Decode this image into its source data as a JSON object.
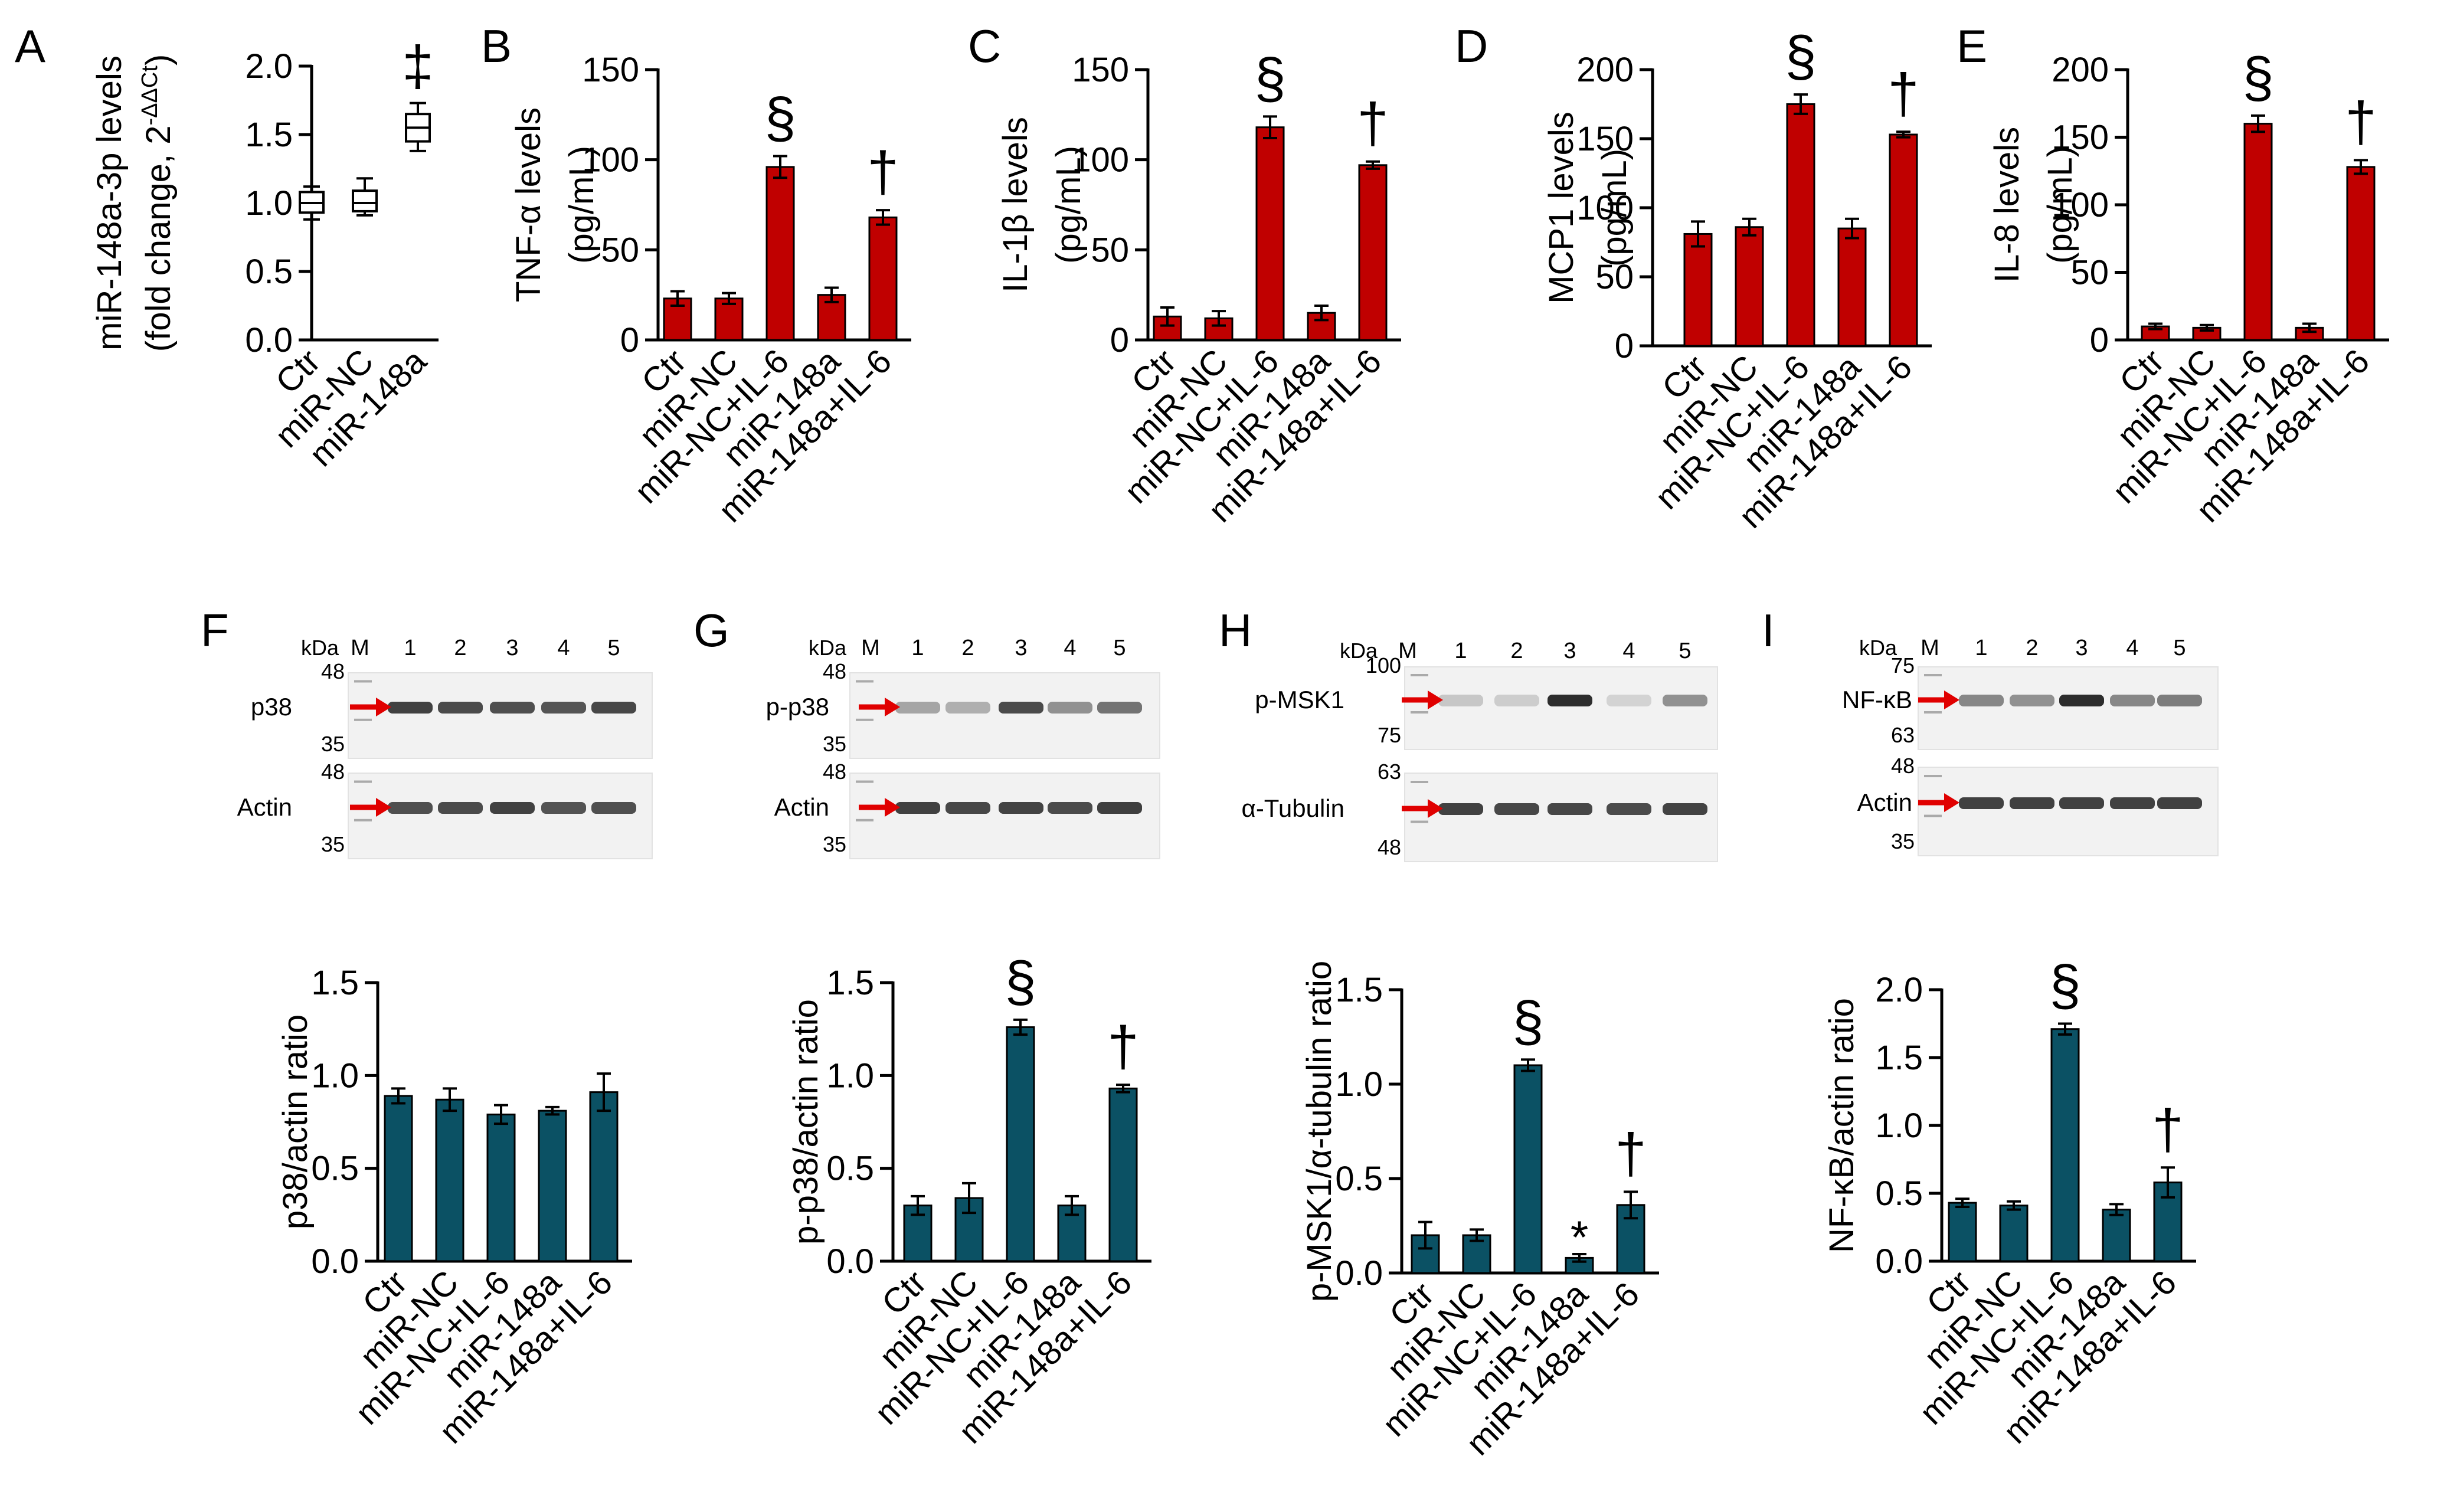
{
  "chart_data": [
    {
      "panel": "A",
      "type": "box",
      "title": "",
      "ylabel": "miR-148a-3p levels",
      "ylabel2_prefix": "(fold change, 2",
      "ylabel2_sup": "-ΔΔCt",
      "ylabel2_suffix": ")",
      "ylim": [
        0,
        2.0
      ],
      "yticks": [
        "0.0",
        "0.5",
        "1.0",
        "1.5",
        "2.0"
      ],
      "ytick_values": [
        0,
        0.5,
        1.0,
        1.5,
        2.0
      ],
      "categories": [
        "Ctr",
        "miR-NC",
        "miR-148a"
      ],
      "boxes": [
        {
          "min": 0.88,
          "q1": 0.93,
          "median": 1.0,
          "q3": 1.08,
          "max": 1.12
        },
        {
          "min": 0.91,
          "q1": 0.94,
          "median": 1.0,
          "q3": 1.09,
          "max": 1.18
        },
        {
          "min": 1.38,
          "q1": 1.45,
          "median": 1.55,
          "q3": 1.65,
          "max": 1.73
        }
      ],
      "annotations": [
        "",
        "",
        "‡"
      ]
    },
    {
      "panel": "B",
      "type": "bar",
      "color": "#c00000",
      "ylabel": "TNF-α levels",
      "ylabel2": "(pg/mL)",
      "ylim": [
        0,
        150
      ],
      "yticks": [
        "0",
        "50",
        "100",
        "150"
      ],
      "ytick_values": [
        0,
        50,
        100,
        150
      ],
      "categories": [
        "Ctr",
        "miR-NC",
        "miR-NC+IL-6",
        "miR-148a",
        "miR-148a+IL-6"
      ],
      "values": [
        23,
        23,
        96,
        25,
        68
      ],
      "errors": [
        4,
        3,
        6,
        4,
        4
      ],
      "annotations": [
        "",
        "",
        "§",
        "",
        "†"
      ]
    },
    {
      "panel": "C",
      "type": "bar",
      "color": "#c00000",
      "ylabel": "IL-1β levels",
      "ylabel2": "(pg/mL)",
      "ylim": [
        0,
        150
      ],
      "yticks": [
        "0",
        "50",
        "100",
        "150"
      ],
      "ytick_values": [
        0,
        50,
        100,
        150
      ],
      "categories": [
        "Ctr",
        "miR-NC",
        "miR-NC+IL-6",
        "miR-148a",
        "miR-148a+IL-6"
      ],
      "values": [
        13,
        12,
        118,
        15,
        97
      ],
      "errors": [
        5,
        4,
        6,
        4,
        2
      ],
      "annotations": [
        "",
        "",
        "§",
        "",
        "†"
      ]
    },
    {
      "panel": "D",
      "type": "bar",
      "color": "#c00000",
      "ylabel": "MCP1 levels",
      "ylabel2": "(pg/mL)",
      "ylim": [
        0,
        200
      ],
      "yticks": [
        "0",
        "50",
        "100",
        "150",
        "200"
      ],
      "ytick_values": [
        0,
        50,
        100,
        150,
        200
      ],
      "categories": [
        "Ctr",
        "miR-NC",
        "miR-NC+IL-6",
        "miR-148a",
        "miR-148a+IL-6"
      ],
      "values": [
        81,
        86,
        175,
        85,
        153
      ],
      "errors": [
        9,
        6,
        7,
        7,
        2
      ],
      "annotations": [
        "",
        "",
        "§",
        "",
        "†"
      ]
    },
    {
      "panel": "E",
      "type": "bar",
      "color": "#c00000",
      "ylabel": "IL-8 levels",
      "ylabel2": "(pg/mL)",
      "ylim": [
        0,
        200
      ],
      "yticks": [
        "0",
        "50",
        "100",
        "150",
        "200"
      ],
      "ytick_values": [
        0,
        50,
        100,
        150,
        200
      ],
      "categories": [
        "Ctr",
        "miR-NC",
        "miR-NC+IL-6",
        "miR-148a",
        "miR-148a+IL-6"
      ],
      "values": [
        10,
        9,
        160,
        9,
        128
      ],
      "errors": [
        2,
        2,
        6,
        3,
        5
      ],
      "annotations": [
        "",
        "",
        "§",
        "",
        "†"
      ]
    },
    {
      "panel": "F",
      "type": "bar",
      "color": "#0b5164",
      "ylabel": "p38/actin ratio",
      "ylabel2": "",
      "ylim": [
        0,
        1.5
      ],
      "yticks": [
        "0.0",
        "0.5",
        "1.0",
        "1.5"
      ],
      "ytick_values": [
        0,
        0.5,
        1.0,
        1.5
      ],
      "categories": [
        "Ctr",
        "miR-NC",
        "miR-NC+IL-6",
        "miR-148a",
        "miR-148a+IL-6"
      ],
      "values": [
        0.89,
        0.87,
        0.79,
        0.81,
        0.91
      ],
      "errors": [
        0.04,
        0.06,
        0.05,
        0.02,
        0.1
      ],
      "annotations": [
        "",
        "",
        "",
        "",
        ""
      ]
    },
    {
      "panel": "G",
      "type": "bar",
      "color": "#0b5164",
      "ylabel": "p-p38/actin ratio",
      "ylabel2": "",
      "ylim": [
        0,
        1.5
      ],
      "yticks": [
        "0.0",
        "0.5",
        "1.0",
        "1.5"
      ],
      "ytick_values": [
        0,
        0.5,
        1.0,
        1.5
      ],
      "categories": [
        "Ctr",
        "miR-NC",
        "miR-NC+IL-6",
        "miR-148a",
        "miR-148a+IL-6"
      ],
      "values": [
        0.3,
        0.34,
        1.26,
        0.3,
        0.93
      ],
      "errors": [
        0.05,
        0.08,
        0.04,
        0.05,
        0.02
      ],
      "annotations": [
        "",
        "",
        "§",
        "",
        "†"
      ]
    },
    {
      "panel": "H",
      "type": "bar",
      "color": "#0b5164",
      "ylabel": "p-MSK1/α-tubulin ratio",
      "ylabel2": "",
      "ylim": [
        0,
        1.5
      ],
      "yticks": [
        "0.0",
        "0.5",
        "1.0",
        "1.5"
      ],
      "ytick_values": [
        0,
        0.5,
        1.0,
        1.5
      ],
      "categories": [
        "Ctr",
        "miR-NC",
        "miR-NC+IL-6",
        "miR-148a",
        "miR-148a+IL-6"
      ],
      "values": [
        0.2,
        0.2,
        1.1,
        0.08,
        0.36
      ],
      "errors": [
        0.07,
        0.03,
        0.03,
        0.02,
        0.07
      ],
      "annotations": [
        "",
        "",
        "§",
        "*",
        "†"
      ]
    },
    {
      "panel": "I",
      "type": "bar",
      "color": "#0b5164",
      "ylabel": "NF-κB/actin ratio",
      "ylabel2": "",
      "ylim": [
        0,
        2.0
      ],
      "yticks": [
        "0.0",
        "0.5",
        "1.0",
        "1.5",
        "2.0"
      ],
      "ytick_values": [
        0,
        0.5,
        1.0,
        1.5,
        2.0
      ],
      "categories": [
        "Ctr",
        "miR-NC",
        "miR-NC+IL-6",
        "miR-148a",
        "miR-148a+IL-6"
      ],
      "values": [
        0.43,
        0.41,
        1.71,
        0.38,
        0.58
      ],
      "errors": [
        0.03,
        0.03,
        0.04,
        0.04,
        0.11
      ],
      "annotations": [
        "",
        "",
        "§",
        "",
        "†"
      ]
    }
  ],
  "blots": [
    {
      "panel": "F",
      "kda_label": "kDa",
      "marker_label": "M",
      "lanes": [
        "1",
        "2",
        "3",
        "4",
        "5"
      ],
      "rows": [
        {
          "protein": "p38",
          "markers": [
            "48",
            "35"
          ],
          "intensity": [
            0.85,
            0.8,
            0.78,
            0.75,
            0.82
          ]
        },
        {
          "protein": "Actin",
          "markers": [
            "48",
            "35"
          ],
          "intensity": [
            0.78,
            0.8,
            0.85,
            0.76,
            0.78
          ]
        }
      ]
    },
    {
      "panel": "G",
      "kda_label": "kDa",
      "marker_label": "M",
      "lanes": [
        "1",
        "2",
        "3",
        "4",
        "5"
      ],
      "rows": [
        {
          "protein": "p-p38",
          "markers": [
            "48",
            "35"
          ],
          "intensity": [
            0.35,
            0.3,
            0.8,
            0.45,
            0.6
          ]
        },
        {
          "protein": "Actin",
          "markers": [
            "48",
            "35"
          ],
          "intensity": [
            0.85,
            0.82,
            0.84,
            0.8,
            0.86
          ]
        }
      ]
    },
    {
      "panel": "H",
      "kda_label": "kDa",
      "marker_label": "M",
      "lanes": [
        "1",
        "2",
        "3",
        "4",
        "5"
      ],
      "rows": [
        {
          "protein": "p-MSK1",
          "markers": [
            "100",
            "75"
          ],
          "intensity": [
            0.18,
            0.15,
            0.95,
            0.12,
            0.45
          ]
        },
        {
          "protein": "α-Tubulin",
          "markers": [
            "63",
            "48"
          ],
          "intensity": [
            0.85,
            0.82,
            0.82,
            0.8,
            0.84
          ]
        }
      ]
    },
    {
      "panel": "I",
      "kda_label": "kDa",
      "marker_label": "M",
      "lanes": [
        "1",
        "2",
        "3",
        "4",
        "5"
      ],
      "rows": [
        {
          "protein": "NF-κB",
          "markers": [
            "75",
            "63"
          ],
          "intensity": [
            0.5,
            0.45,
            0.95,
            0.5,
            0.55
          ]
        },
        {
          "protein": "Actin",
          "markers": [
            "48",
            "35"
          ],
          "intensity": [
            0.85,
            0.85,
            0.85,
            0.85,
            0.85
          ]
        }
      ]
    }
  ]
}
